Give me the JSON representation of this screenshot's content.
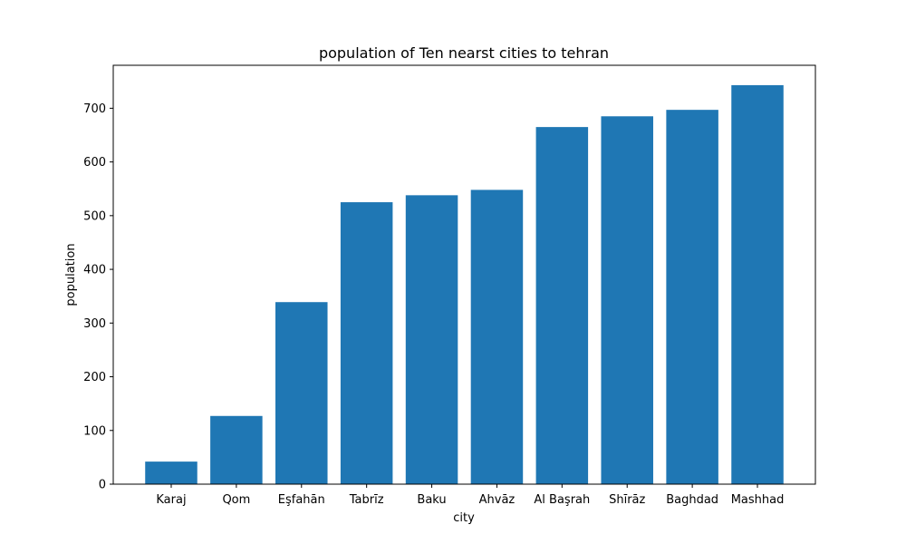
{
  "chart_data": {
    "type": "bar",
    "title": "population of Ten nearst cities to tehran",
    "xlabel": "city",
    "ylabel": "population",
    "categories": [
      "Karaj",
      "Qom",
      "Eşfahān",
      "Tabrīz",
      "Baku",
      "Ahvāz",
      "Al Başrah",
      "Shīrāz",
      "Baghdad",
      "Mashhad"
    ],
    "values": [
      42,
      127,
      339,
      525,
      538,
      548,
      665,
      685,
      697,
      743
    ],
    "ylim": [
      0,
      780
    ],
    "yticks": [
      0,
      100,
      200,
      300,
      400,
      500,
      600,
      700
    ],
    "bar_color": "#1f77b4",
    "grid": false,
    "legend": "none"
  }
}
